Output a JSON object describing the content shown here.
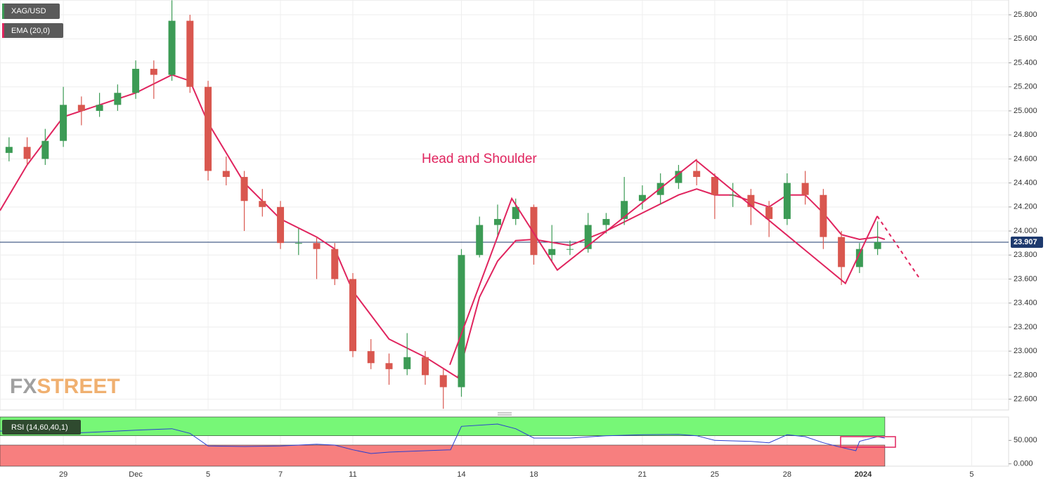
{
  "chart_data": [
    {
      "type": "candlestick",
      "name": "XAG/USD",
      "up_color": "#3c9b55",
      "down_color": "#d9574f",
      "x": [
        -1.5,
        -1,
        -0.5,
        0,
        0.5,
        1,
        1.5,
        2,
        2.5,
        3,
        3.5,
        4,
        4.5,
        5,
        5.5,
        6,
        6.5,
        7,
        7.5,
        8,
        8.5,
        9,
        9.5,
        10,
        10.5,
        11,
        11.5,
        12,
        12.5,
        13,
        13.5,
        14,
        14.5,
        15,
        15.5,
        16,
        16.5,
        17,
        17.5,
        18,
        18.5,
        19,
        19.5,
        20,
        20.5,
        21,
        21.5,
        22,
        22.5
      ],
      "open": [
        24.65,
        24.7,
        24.6,
        24.75,
        25.05,
        25.0,
        25.05,
        25.15,
        25.35,
        25.3,
        25.75,
        25.2,
        24.5,
        24.45,
        24.25,
        24.2,
        23.9,
        23.9,
        23.85,
        23.6,
        23.0,
        22.9,
        22.85,
        22.95,
        22.8,
        22.7,
        23.8,
        24.05,
        24.1,
        24.2,
        23.8,
        23.85,
        23.85,
        24.05,
        24.1,
        24.25,
        24.3,
        24.4,
        24.5,
        24.45,
        24.3,
        24.3,
        24.2,
        24.1,
        24.4,
        24.3,
        23.95,
        23.7,
        23.85
      ],
      "high": [
        24.78,
        24.78,
        24.85,
        25.2,
        25.12,
        25.15,
        25.22,
        25.42,
        25.42,
        25.92,
        25.8,
        25.25,
        24.62,
        24.5,
        24.35,
        24.25,
        24.02,
        23.95,
        23.9,
        23.65,
        23.1,
        22.98,
        23.15,
        23.0,
        22.85,
        23.85,
        24.12,
        24.22,
        24.27,
        24.22,
        24.05,
        23.92,
        24.15,
        24.15,
        24.45,
        24.38,
        24.48,
        24.55,
        24.6,
        24.48,
        24.4,
        24.35,
        24.25,
        24.48,
        24.5,
        24.35,
        24.0,
        23.9,
        24.08
      ],
      "low": [
        24.58,
        24.55,
        24.55,
        24.7,
        24.88,
        24.95,
        25.0,
        25.1,
        25.1,
        25.25,
        25.15,
        24.42,
        24.38,
        24.0,
        24.12,
        23.85,
        23.8,
        23.6,
        23.55,
        22.95,
        22.85,
        22.72,
        22.8,
        22.72,
        22.52,
        22.62,
        23.78,
        23.95,
        24.05,
        23.72,
        23.75,
        23.8,
        23.82,
        23.98,
        24.05,
        24.18,
        24.22,
        24.35,
        24.38,
        24.1,
        24.2,
        24.05,
        23.95,
        24.05,
        24.22,
        23.85,
        23.55,
        23.65,
        23.8
      ],
      "close": [
        24.7,
        24.6,
        24.75,
        25.05,
        25.0,
        25.05,
        25.15,
        25.35,
        25.3,
        25.75,
        25.2,
        24.5,
        24.45,
        24.25,
        24.2,
        23.9,
        23.9,
        23.85,
        23.6,
        23.0,
        22.9,
        22.85,
        22.95,
        22.8,
        22.7,
        23.8,
        24.05,
        24.1,
        24.2,
        23.8,
        23.85,
        23.85,
        24.05,
        24.1,
        24.25,
        24.3,
        24.4,
        24.5,
        24.45,
        24.3,
        24.3,
        24.2,
        24.1,
        24.4,
        24.3,
        23.95,
        23.7,
        23.85,
        23.907
      ],
      "overlays": [
        {
          "name": "EMA (20,0)",
          "color": "#e0245e",
          "x": [
            -1.75,
            -1,
            0,
            1,
            2,
            3,
            3.5,
            4,
            5,
            6,
            7,
            7.5,
            8,
            9,
            10,
            10.9,
            11.5,
            12,
            12.5,
            13,
            14,
            15,
            16,
            17,
            17.5,
            18,
            18.5,
            19,
            19.5,
            20,
            20.5,
            21,
            21.5,
            22,
            22.5,
            22.7
          ],
          "values": [
            24.17,
            24.55,
            24.95,
            25.05,
            25.15,
            25.3,
            25.25,
            24.9,
            24.4,
            24.1,
            23.95,
            23.85,
            23.5,
            23.1,
            22.95,
            22.78,
            23.45,
            23.75,
            23.92,
            23.93,
            23.88,
            24.0,
            24.15,
            24.3,
            24.35,
            24.3,
            24.3,
            24.25,
            24.2,
            24.3,
            24.3,
            24.15,
            23.97,
            23.93,
            23.95,
            23.93
          ]
        }
      ],
      "pattern": {
        "color": "#e0245e",
        "x": [
          10.68,
          12.39,
          13.65,
          17.48,
          21.61,
          22.49
        ],
        "values": [
          22.886,
          24.27,
          23.675,
          24.59,
          23.564,
          24.124
        ]
      },
      "projection": {
        "color": "#e0245e",
        "style": "dashed",
        "x": [
          22.49,
          23.65
        ],
        "values": [
          24.124,
          23.61
        ]
      },
      "annotation": "Head and Shoulder",
      "last_price": 23.907,
      "watermark": [
        "FX",
        "STREET"
      ],
      "grid": true,
      "xlim": [
        -1.75,
        26.12
      ],
      "ylim": [
        22.51,
        25.923
      ],
      "yticks": [
        {
          "value": 22.6,
          "label": "22.600"
        },
        {
          "value": 22.8,
          "label": "22.800"
        },
        {
          "value": 23.0,
          "label": "23.000"
        },
        {
          "value": 23.2,
          "label": "23.200"
        },
        {
          "value": 23.4,
          "label": "23.400"
        },
        {
          "value": 23.6,
          "label": "23.600"
        },
        {
          "value": 23.8,
          "label": "23.800"
        },
        {
          "value": 24.0,
          "label": "24.000"
        },
        {
          "value": 24.2,
          "label": "24.200"
        },
        {
          "value": 24.4,
          "label": "24.400"
        },
        {
          "value": 24.6,
          "label": "24.600"
        },
        {
          "value": 24.8,
          "label": "24.800"
        },
        {
          "value": 25.0,
          "label": "25.000"
        },
        {
          "value": 25.2,
          "label": "25.200"
        },
        {
          "value": 25.4,
          "label": "25.400"
        },
        {
          "value": 25.6,
          "label": "25.600"
        },
        {
          "value": 25.8,
          "label": "25.800"
        }
      ]
    },
    {
      "type": "line",
      "name": "RSI (14,60,40,1)",
      "color": "#2a3fd0",
      "x": [
        -1.75,
        -1,
        0,
        1,
        2,
        3,
        3.5,
        4,
        5,
        6,
        7,
        7.5,
        8,
        8.5,
        9,
        10,
        10.7,
        11,
        12,
        12.5,
        13,
        14,
        15,
        16,
        17,
        17.5,
        18,
        19,
        19.5,
        20,
        20.5,
        21,
        21.5,
        21.9,
        22,
        22.5,
        22.7
      ],
      "values": [
        70,
        68,
        65,
        68,
        72,
        75,
        65,
        38,
        37,
        38,
        42,
        40,
        30,
        22,
        25,
        28,
        30,
        80,
        85,
        75,
        55,
        55,
        60,
        62,
        63,
        60,
        50,
        48,
        45,
        62,
        58,
        45,
        35,
        28,
        48,
        58,
        55
      ],
      "upper_level": 60,
      "lower_level": 40,
      "upper_color": "#77f777",
      "lower_color": "#f77f7f",
      "xlim": [
        -1.75,
        26.12
      ],
      "ylim": [
        -5,
        100
      ],
      "yticks": [
        {
          "value": 0,
          "label": "0.000"
        },
        {
          "value": 50,
          "label": "50.000"
        }
      ],
      "xticks": [
        {
          "value": 0,
          "label": "29"
        },
        {
          "value": 2,
          "label": "Dec"
        },
        {
          "value": 4,
          "label": "5"
        },
        {
          "value": 6,
          "label": "7"
        },
        {
          "value": 8,
          "label": "11"
        },
        {
          "value": 11,
          "label": "14"
        },
        {
          "value": 13,
          "label": "18"
        },
        {
          "value": 16,
          "label": "21"
        },
        {
          "value": 18,
          "label": "25"
        },
        {
          "value": 20,
          "label": "28"
        },
        {
          "value": 22.1,
          "label": "2024"
        },
        {
          "value": 25.1,
          "label": "5"
        }
      ]
    }
  ]
}
